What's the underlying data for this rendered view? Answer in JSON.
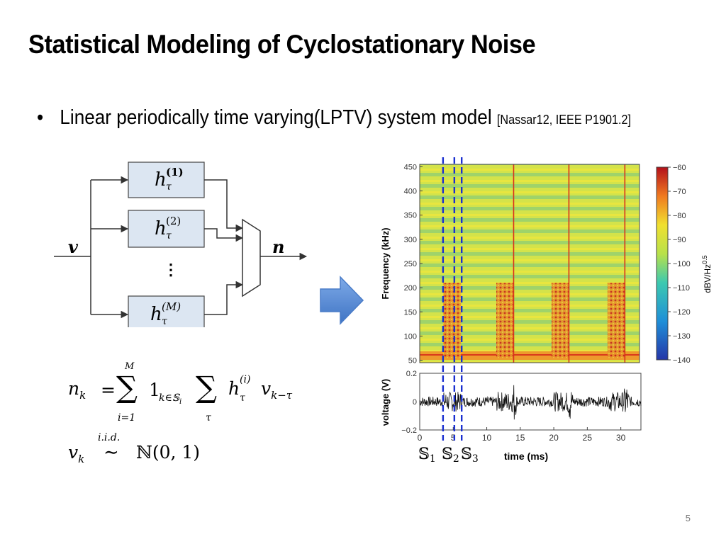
{
  "slide": {
    "title": "Statistical Modeling of Cyclostationary Noise",
    "bullet_text": "Linear periodically time varying(LPTV) system model",
    "bullet_ref": "[Nassar12, IEEE P1901.2]",
    "page_number": "5"
  },
  "block_diagram": {
    "input": "v",
    "output": "n",
    "filter_base": "h",
    "filter_sub": "τ",
    "filters": [
      "(1)",
      "(2)",
      "(M)"
    ],
    "dots": "⋮"
  },
  "equations": {
    "line1_lhs": "n",
    "line1_lhs_sub": "k",
    "sum_top": "M",
    "sum_bottom": "i=1",
    "indicator": "1",
    "indicator_sub": "k∈𝕊",
    "indicator_sub2": "i",
    "sum2_bottom": "τ",
    "h": "h",
    "h_sub": "τ",
    "h_sup": "(i)",
    "v": "v",
    "v_sub": "k−τ",
    "line2_lhs": "v",
    "line2_lhs_sub": "k",
    "iid": "i.i.d.",
    "dist": "ℕ(0, 1)"
  },
  "figure": {
    "spectrogram": {
      "ylabel": "Frequency (kHz)",
      "yticks": [
        "450",
        "400",
        "350",
        "300",
        "250",
        "200",
        "150",
        "100",
        "50"
      ],
      "colorbar_label": "dBV/Hz",
      "colorbar_exp": "0.5",
      "colorbar_ticks": [
        "−60",
        "−70",
        "−80",
        "−90",
        "−100",
        "−110",
        "−120",
        "−130",
        "−140"
      ]
    },
    "waveform": {
      "ylabel": "voltage (V)",
      "yticks": [
        "0.2",
        "0",
        "−0.2"
      ],
      "xlabel": "time (ms)",
      "xticks": [
        "0",
        "5",
        "10",
        "15",
        "20",
        "25",
        "30"
      ]
    },
    "segment_labels": [
      "𝕊",
      "𝕊",
      "𝕊"
    ],
    "segment_subs": [
      "1",
      "2",
      "3"
    ]
  },
  "chart_data": [
    {
      "type": "heatmap",
      "ylabel": "Frequency (kHz)",
      "xlabel": "time (ms)",
      "xlim": [
        0,
        33
      ],
      "ylim": [
        45,
        455
      ],
      "colorbar": {
        "label": "dBV/Hz^0.5",
        "range": [
          -140,
          -60
        ]
      },
      "impulse_times_ms": [
        14.1,
        22.4,
        30.8
      ],
      "burst_intervals_ms": [
        [
          3.5,
          6.2
        ],
        [
          11.5,
          14.1
        ],
        [
          19.8,
          22.4
        ],
        [
          28.2,
          30.8
        ]
      ],
      "burst_freq_range_khz": [
        55,
        210
      ],
      "segment_markers_ms": [
        3.5,
        5.2,
        6.3
      ]
    },
    {
      "type": "line",
      "ylabel": "voltage (V)",
      "xlabel": "time (ms)",
      "xlim": [
        0,
        33
      ],
      "ylim": [
        -0.2,
        0.2
      ],
      "impulse_times_ms": [
        14.1,
        22.4,
        30.8
      ]
    }
  ],
  "colors": {
    "filter_box_fill": "#dce6f2",
    "arrow_blue": "#5b8fd6",
    "dashed_marker": "#1a2fd0"
  }
}
